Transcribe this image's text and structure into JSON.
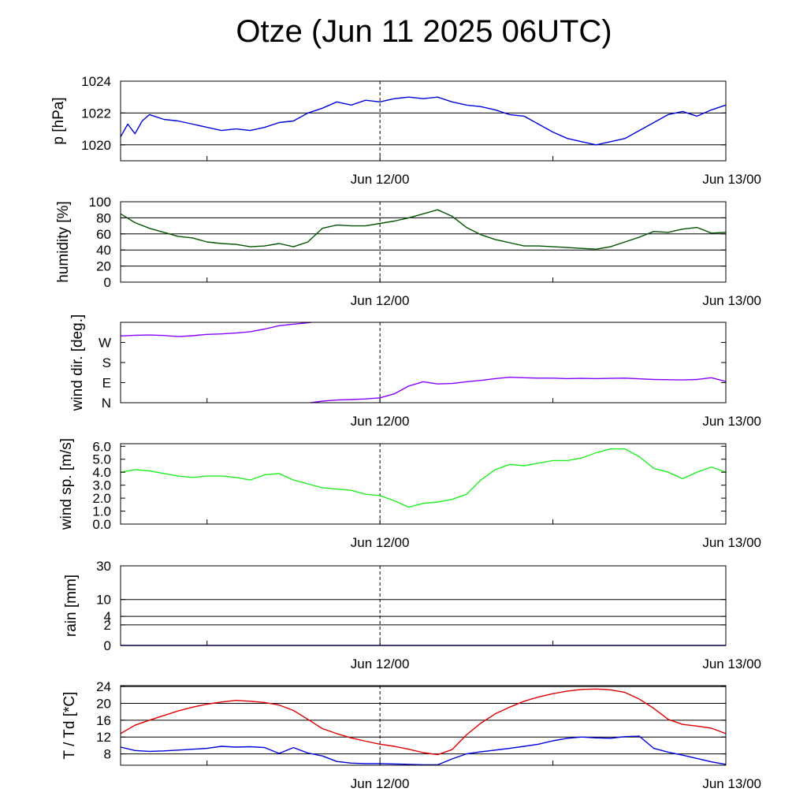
{
  "title": "Otze (Jun 11 2025 06UTC)",
  "chart_data": [
    {
      "type": "line",
      "ylabel": "p [hPa]",
      "x_tick_labels": [
        "Jun 12/00",
        "Jun 13/00"
      ],
      "y_tick_labels": [
        "1020",
        "1022",
        "1024"
      ],
      "y_ticks": [
        1020,
        1022,
        1024
      ],
      "ylim": [
        1019,
        1024
      ],
      "grid": "horizontal",
      "series": [
        {
          "color": "#0000dd",
          "x": [
            0,
            0.5,
            1,
            1.5,
            2,
            3,
            4,
            5,
            6,
            7,
            8,
            9,
            10,
            11,
            12,
            13,
            14,
            15,
            16,
            17,
            18,
            18.5,
            19,
            20,
            21,
            22,
            23,
            24,
            25,
            26,
            27,
            28,
            29,
            30,
            31,
            32,
            33,
            34,
            35,
            36,
            37,
            38,
            39,
            40,
            41,
            42
          ],
          "values": [
            1020.5,
            1021.3,
            1020.7,
            1021.5,
            1021.9,
            1021.6,
            1021.5,
            1021.3,
            1021.1,
            1020.9,
            1021.0,
            1020.9,
            1021.1,
            1021.4,
            1021.5,
            1022.0,
            1022.3,
            1022.7,
            1022.5,
            1022.8,
            1022.7,
            1022.8,
            1022.9,
            1023.0,
            1022.9,
            1023.0,
            1022.7,
            1022.5,
            1022.4,
            1022.2,
            1021.9,
            1021.8,
            1021.3,
            1020.8,
            1020.4,
            1020.2,
            1020.0,
            1020.2,
            1020.4,
            1020.9,
            1021.4,
            1021.9,
            1022.1,
            1021.8,
            1022.2,
            1022.5
          ]
        }
      ]
    },
    {
      "type": "line",
      "ylabel": "humidity [%]",
      "x_tick_labels": [
        "Jun 12/00",
        "Jun 13/00"
      ],
      "y_tick_labels": [
        "0",
        "20",
        "40",
        "60",
        "80",
        "100"
      ],
      "y_ticks": [
        0,
        20,
        40,
        60,
        80,
        100
      ],
      "ylim": [
        0,
        100
      ],
      "grid": "horizontal",
      "series": [
        {
          "color": "#005500",
          "x": [
            0,
            1,
            2,
            3,
            4,
            5,
            6,
            7,
            8,
            9,
            10,
            11,
            12,
            13,
            14,
            15,
            16,
            17,
            18,
            19,
            20,
            21,
            22,
            23,
            24,
            25,
            26,
            27,
            28,
            29,
            30,
            31,
            32,
            33,
            34,
            35,
            36,
            37,
            38,
            39,
            40,
            41,
            42
          ],
          "values": [
            85,
            74,
            67,
            62,
            57,
            55,
            50,
            48,
            47,
            44,
            45,
            48,
            44,
            50,
            67,
            71,
            70,
            70,
            73,
            76,
            80,
            85,
            90,
            82,
            68,
            59,
            53,
            49,
            45,
            45,
            44,
            43,
            42,
            41,
            44,
            50,
            56,
            63,
            62,
            66,
            68,
            61,
            62
          ]
        }
      ]
    },
    {
      "type": "line",
      "ylabel": "wind dir. [deg.]",
      "x_tick_labels": [
        "Jun 12/00",
        "Jun 13/00"
      ],
      "y_tick_labels": [
        "N",
        "E",
        "S",
        "W"
      ],
      "y_ticks": [
        0,
        90,
        180,
        270
      ],
      "ylim": [
        0,
        360
      ],
      "grid": "none",
      "series": [
        {
          "color": "#8800ff",
          "x": [
            0,
            1,
            2,
            3,
            4,
            5,
            6,
            7,
            8,
            9,
            10,
            11,
            12,
            13,
            13.2,
            13.2,
            14,
            15,
            16,
            17,
            18,
            19,
            20,
            21,
            22,
            23,
            24,
            25,
            26,
            27,
            28,
            29,
            30,
            31,
            32,
            33,
            34,
            35,
            36,
            37,
            38,
            39,
            40,
            41,
            42
          ],
          "values": [
            299,
            302,
            303,
            301,
            296,
            300,
            306,
            308,
            312,
            318,
            330,
            345,
            352,
            358,
            360,
            0,
            7,
            12,
            14,
            17,
            22,
            40,
            75,
            94,
            84,
            86,
            94,
            100,
            108,
            114,
            112,
            110,
            110,
            108,
            109,
            108,
            109,
            110,
            107,
            104,
            103,
            102,
            104,
            112,
            95
          ]
        }
      ]
    },
    {
      "type": "line",
      "ylabel": "wind sp. [m/s]",
      "x_tick_labels": [
        "Jun 12/00",
        "Jun 13/00"
      ],
      "y_tick_labels": [
        "0.0",
        "1.0",
        "2.0",
        "3.0",
        "4.0",
        "5.0",
        "6.0"
      ],
      "y_ticks": [
        0,
        1,
        2,
        3,
        4,
        5,
        6
      ],
      "ylim": [
        0,
        6.2
      ],
      "grid": "none",
      "series": [
        {
          "color": "#22ee22",
          "x": [
            0,
            1,
            2,
            3,
            4,
            5,
            6,
            7,
            8,
            9,
            10,
            11,
            12,
            13,
            14,
            15,
            16,
            17,
            18,
            19,
            20,
            21,
            22,
            23,
            24,
            25,
            26,
            27,
            28,
            29,
            30,
            31,
            32,
            33,
            34,
            35,
            36,
            37,
            38,
            39,
            40,
            41,
            42
          ],
          "values": [
            4.0,
            4.2,
            4.1,
            3.9,
            3.7,
            3.6,
            3.7,
            3.7,
            3.6,
            3.4,
            3.8,
            3.9,
            3.4,
            3.1,
            2.8,
            2.7,
            2.6,
            2.3,
            2.2,
            1.8,
            1.3,
            1.6,
            1.7,
            1.9,
            2.3,
            3.4,
            4.2,
            4.6,
            4.5,
            4.7,
            4.9,
            4.9,
            5.1,
            5.5,
            5.8,
            5.8,
            5.2,
            4.3,
            4.0,
            3.5,
            4.0,
            4.4,
            4.0
          ]
        }
      ]
    },
    {
      "type": "line",
      "ylabel": "rain [mm]",
      "x_tick_labels": [
        "Jun 12/00",
        "Jun 13/00"
      ],
      "y_tick_labels": [
        "0",
        "2",
        "4",
        "10",
        "30"
      ],
      "y_ticks": [
        0,
        2,
        4,
        10,
        30
      ],
      "yscale": "sqrt",
      "ylim": [
        0,
        30
      ],
      "grid": "horizontal",
      "series": [
        {
          "color": "#0000dd",
          "x": [
            0,
            42
          ],
          "values": [
            0,
            0
          ]
        }
      ]
    },
    {
      "type": "line",
      "ylabel": "T / Td [*C]",
      "x_tick_labels": [
        "Jun 12/00",
        "Jun 13/00"
      ],
      "y_tick_labels": [
        "8",
        "12",
        "16",
        "20",
        "24"
      ],
      "y_ticks": [
        8,
        12,
        16,
        20,
        24
      ],
      "ylim": [
        5.3,
        24.2
      ],
      "grid": "horizontal",
      "series": [
        {
          "color": "#dd0000",
          "x": [
            0,
            1,
            2,
            3,
            4,
            5,
            6,
            7,
            8,
            9,
            10,
            11,
            12,
            13,
            14,
            15,
            16,
            17,
            18,
            19,
            20,
            21,
            22,
            23,
            24,
            25,
            26,
            27,
            28,
            29,
            30,
            31,
            32,
            33,
            34,
            35,
            36,
            37,
            38,
            39,
            40,
            41,
            42
          ],
          "values": [
            12.8,
            14.8,
            16.0,
            17.1,
            18.2,
            19.1,
            19.8,
            20.3,
            20.7,
            20.5,
            20.2,
            19.6,
            18.3,
            16.2,
            14.0,
            12.8,
            11.8,
            11.0,
            10.3,
            9.8,
            9.1,
            8.3,
            7.8,
            9.0,
            12.5,
            15.3,
            17.5,
            19.1,
            20.5,
            21.5,
            22.3,
            22.9,
            23.3,
            23.4,
            23.2,
            22.6,
            21.0,
            18.8,
            16.2,
            15.0,
            14.6,
            14.1,
            12.8
          ]
        },
        {
          "color": "#0000dd",
          "x": [
            0,
            1,
            2,
            3,
            4,
            5,
            6,
            7,
            8,
            9,
            10,
            11,
            12,
            13,
            14,
            15,
            16,
            17,
            18,
            19,
            20,
            21,
            22,
            23,
            24,
            25,
            26,
            27,
            28,
            29,
            30,
            31,
            32,
            33,
            34,
            35,
            36,
            37,
            38,
            39,
            40,
            41,
            42
          ],
          "values": [
            9.6,
            8.8,
            8.6,
            8.7,
            8.9,
            9.1,
            9.3,
            9.8,
            9.6,
            9.7,
            9.5,
            8.1,
            9.5,
            8.2,
            7.5,
            6.2,
            5.8,
            5.7,
            5.7,
            5.6,
            5.5,
            5.4,
            5.4,
            6.8,
            8.0,
            8.5,
            8.9,
            9.3,
            9.8,
            10.3,
            11.1,
            11.7,
            12.0,
            11.8,
            11.7,
            12.1,
            12.2,
            9.3,
            8.4,
            7.7,
            6.9,
            6.1,
            5.5
          ]
        }
      ]
    }
  ]
}
